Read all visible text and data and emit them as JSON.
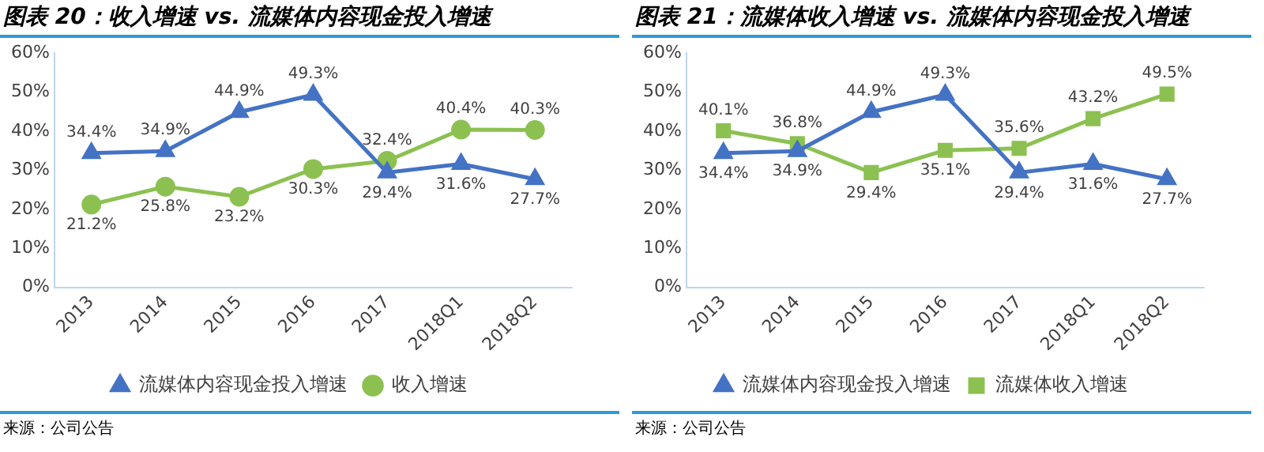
{
  "chart_data": [
    {
      "type": "line",
      "title": "图表 20：收入增速 vs. 流媒体内容现金投入增速",
      "categories": [
        "2013",
        "2014",
        "2015",
        "2016",
        "2017",
        "2018Q1",
        "2018Q2"
      ],
      "series": [
        {
          "name": "流媒体内容现金投入增速",
          "color": "#4472c4",
          "marker": "triangle",
          "values": [
            34.4,
            34.9,
            44.9,
            49.3,
            29.4,
            31.6,
            27.7
          ],
          "value_labels": [
            "34.4%",
            "34.9%",
            "44.9%",
            "49.3%",
            "29.4%",
            "31.6%",
            "27.7%"
          ]
        },
        {
          "name": "收入增速",
          "color": "#8cc152",
          "marker": "circle",
          "values": [
            21.2,
            25.8,
            23.2,
            30.3,
            32.4,
            40.4,
            40.3
          ],
          "value_labels": [
            "21.2%",
            "25.8%",
            "23.2%",
            "30.3%",
            "32.4%",
            "40.4%",
            "40.3%"
          ]
        }
      ],
      "ylim": [
        0,
        60
      ],
      "yticks": [
        {
          "value": 0,
          "label": "0%"
        },
        {
          "value": 10,
          "label": "10%"
        },
        {
          "value": 20,
          "label": "20%"
        },
        {
          "value": 30,
          "label": "30%"
        },
        {
          "value": 40,
          "label": "40%"
        },
        {
          "value": 50,
          "label": "50%"
        },
        {
          "value": 60,
          "label": "60%"
        }
      ],
      "grid": false,
      "legend": "bottom",
      "annotations": [
        "来源：公司公告"
      ]
    },
    {
      "type": "line",
      "title": "图表 21：流媒体收入增速 vs. 流媒体内容现金投入增速",
      "categories": [
        "2013",
        "2014",
        "2015",
        "2016",
        "2017",
        "2018Q1",
        "2018Q2"
      ],
      "series": [
        {
          "name": "流媒体内容现金投入增速",
          "color": "#4472c4",
          "marker": "triangle",
          "values": [
            34.4,
            34.9,
            44.9,
            49.3,
            29.4,
            31.6,
            27.7
          ],
          "value_labels": [
            "34.4%",
            "34.9%",
            "44.9%",
            "49.3%",
            "29.4%",
            "31.6%",
            "27.7%"
          ]
        },
        {
          "name": "流媒体收入增速",
          "color": "#8cc152",
          "marker": "square",
          "values": [
            40.1,
            36.8,
            29.4,
            35.1,
            35.6,
            43.2,
            49.5
          ],
          "value_labels": [
            "40.1%",
            "36.8%",
            "29.4%",
            "35.1%",
            "35.6%",
            "43.2%",
            "49.5%"
          ]
        }
      ],
      "ylim": [
        0,
        60
      ],
      "yticks": [
        {
          "value": 0,
          "label": "0%"
        },
        {
          "value": 10,
          "label": "10%"
        },
        {
          "value": 20,
          "label": "20%"
        },
        {
          "value": 30,
          "label": "30%"
        },
        {
          "value": 40,
          "label": "40%"
        },
        {
          "value": 50,
          "label": "50%"
        },
        {
          "value": 60,
          "label": "60%"
        }
      ],
      "grid": false,
      "legend": "bottom",
      "annotations": [
        "来源：公司公告"
      ]
    }
  ]
}
